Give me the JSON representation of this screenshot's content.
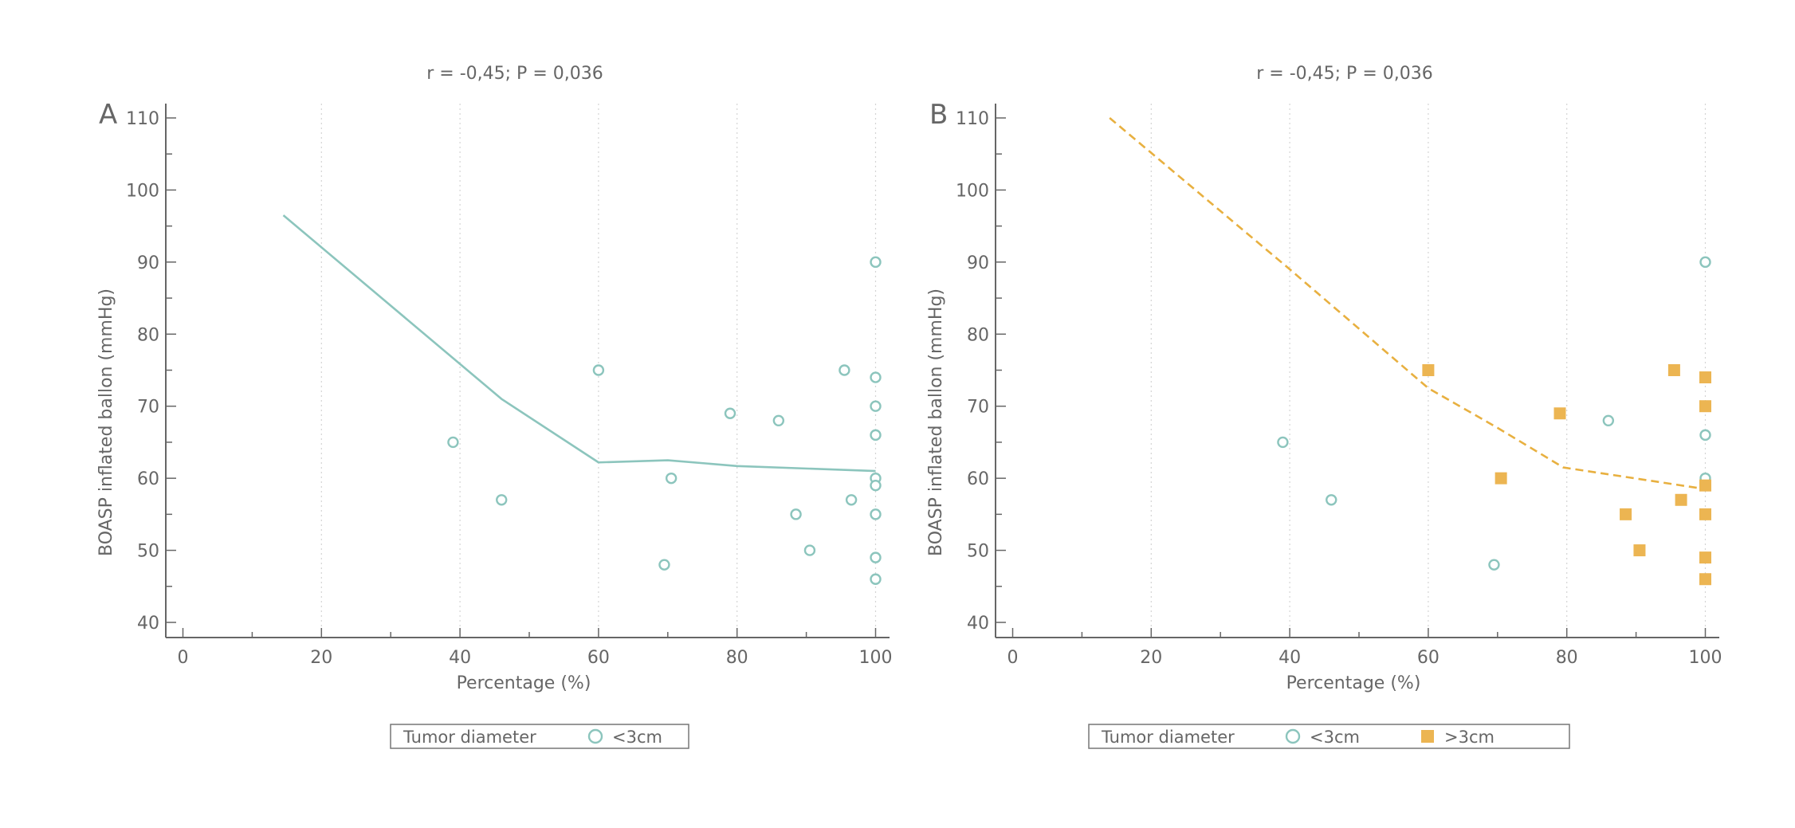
{
  "chart_data": [
    {
      "type": "scatter",
      "panel_letter": "A",
      "title": "r = -0,45; P = 0,036",
      "xlabel": "Percentage (%)",
      "ylabel": "BOASP inflated ballon (mmHg)",
      "xlim": [
        -2,
        102
      ],
      "ylim": [
        38,
        112
      ],
      "xticks": [
        0,
        20,
        40,
        60,
        80,
        100
      ],
      "yticks": [
        40,
        50,
        60,
        70,
        80,
        90,
        100,
        110
      ],
      "grid": "vertical dotted",
      "legend": {
        "title": "Tumor diameter",
        "entries": [
          {
            "label": "<3cm",
            "marker": "open-circle",
            "color": "#8cc5bd"
          }
        ],
        "placement": "bottom"
      },
      "series": [
        {
          "name": "<3cm",
          "marker": "open-circle",
          "color": "#8cc5bd",
          "points": [
            {
              "x": 39,
              "y": 65
            },
            {
              "x": 46,
              "y": 57
            },
            {
              "x": 60,
              "y": 75
            },
            {
              "x": 69.5,
              "y": 48
            },
            {
              "x": 70.5,
              "y": 60
            },
            {
              "x": 79,
              "y": 69
            },
            {
              "x": 86,
              "y": 68
            },
            {
              "x": 88.5,
              "y": 55
            },
            {
              "x": 90.5,
              "y": 50
            },
            {
              "x": 95.5,
              "y": 75
            },
            {
              "x": 96.5,
              "y": 57
            },
            {
              "x": 100,
              "y": 90
            },
            {
              "x": 100,
              "y": 74
            },
            {
              "x": 100,
              "y": 70
            },
            {
              "x": 100,
              "y": 66
            },
            {
              "x": 100,
              "y": 60
            },
            {
              "x": 100,
              "y": 59
            },
            {
              "x": 100,
              "y": 55
            },
            {
              "x": 100,
              "y": 49
            },
            {
              "x": 100,
              "y": 46
            }
          ]
        }
      ],
      "fit_line": {
        "style": "solid",
        "color": "#8cc5bd",
        "points": [
          {
            "x": 14.5,
            "y": 96.5
          },
          {
            "x": 46,
            "y": 71
          },
          {
            "x": 60,
            "y": 62.2
          },
          {
            "x": 70,
            "y": 62.5
          },
          {
            "x": 80,
            "y": 61.7
          },
          {
            "x": 100,
            "y": 61
          }
        ]
      }
    },
    {
      "type": "scatter",
      "panel_letter": "B",
      "title": "r = -0,45; P = 0,036",
      "xlabel": "Percentage (%)",
      "ylabel": "BOASP inflated ballon (mmHg)",
      "xlim": [
        -2,
        102
      ],
      "ylim": [
        38,
        112
      ],
      "xticks": [
        0,
        20,
        40,
        60,
        80,
        100
      ],
      "yticks": [
        40,
        50,
        60,
        70,
        80,
        90,
        100,
        110
      ],
      "grid": "vertical dotted",
      "legend": {
        "title": "Tumor diameter",
        "entries": [
          {
            "label": "<3cm",
            "marker": "open-circle",
            "color": "#8cc5bd"
          },
          {
            "label": ">3cm",
            "marker": "filled-square",
            "color": "#ecb552"
          }
        ],
        "placement": "bottom"
      },
      "series": [
        {
          "name": "<3cm",
          "marker": "open-circle",
          "color": "#8cc5bd",
          "points": [
            {
              "x": 39,
              "y": 65
            },
            {
              "x": 46,
              "y": 57
            },
            {
              "x": 69.5,
              "y": 48
            },
            {
              "x": 86,
              "y": 68
            },
            {
              "x": 100,
              "y": 90
            },
            {
              "x": 100,
              "y": 66
            },
            {
              "x": 100,
              "y": 60
            },
            {
              "x": 100,
              "y": 49
            }
          ]
        },
        {
          "name": ">3cm",
          "marker": "filled-square",
          "color": "#ecb552",
          "points": [
            {
              "x": 60,
              "y": 75
            },
            {
              "x": 70.5,
              "y": 60
            },
            {
              "x": 79,
              "y": 69
            },
            {
              "x": 88.5,
              "y": 55
            },
            {
              "x": 90.5,
              "y": 50
            },
            {
              "x": 95.5,
              "y": 75
            },
            {
              "x": 96.5,
              "y": 57
            },
            {
              "x": 100,
              "y": 74
            },
            {
              "x": 100,
              "y": 70
            },
            {
              "x": 100,
              "y": 59
            },
            {
              "x": 100,
              "y": 55
            },
            {
              "x": 100,
              "y": 49
            },
            {
              "x": 100,
              "y": 46
            }
          ]
        }
      ],
      "fit_line": {
        "style": "dashed",
        "color": "#e8b040",
        "points": [
          {
            "x": 14,
            "y": 110
          },
          {
            "x": 40,
            "y": 89
          },
          {
            "x": 60,
            "y": 72.5
          },
          {
            "x": 70,
            "y": 67
          },
          {
            "x": 79.5,
            "y": 61.5
          },
          {
            "x": 100,
            "y": 58.5
          }
        ]
      }
    }
  ]
}
